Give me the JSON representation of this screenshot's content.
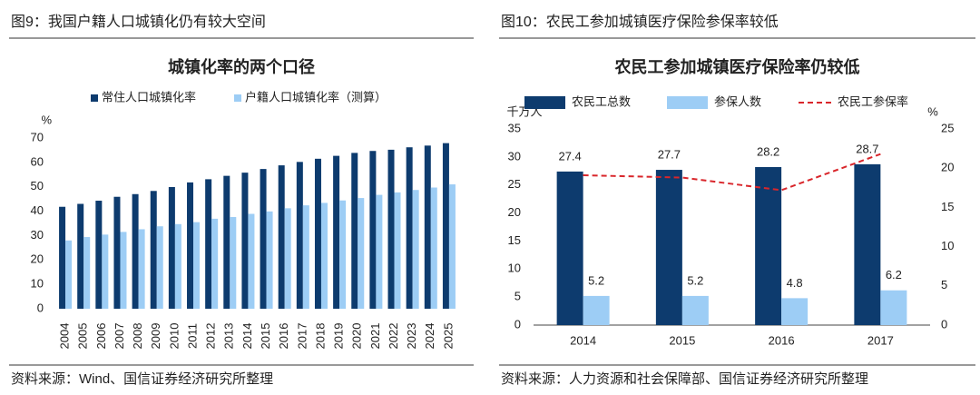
{
  "chart_data": [
    {
      "type": "bar",
      "caption": "图9：我国户籍人口城镇化仍有较大空间",
      "title": "城镇化率的两个口径",
      "source": "资料来源：Wind、国信证券经济研究所整理",
      "y_unit": "%",
      "categories": [
        "2004",
        "2005",
        "2006",
        "2007",
        "2008",
        "2009",
        "2010",
        "2011",
        "2012",
        "2013",
        "2014",
        "2015",
        "2016",
        "2017",
        "2018",
        "2019",
        "2020",
        "2021",
        "2022",
        "2023",
        "2024",
        "2025"
      ],
      "series": [
        {
          "name": "常住人口城镇化率",
          "color": "#0d3b6e",
          "values": [
            41.8,
            43.0,
            44.3,
            45.9,
            47.0,
            48.3,
            49.9,
            51.8,
            53.1,
            54.5,
            55.8,
            57.3,
            58.8,
            60.2,
            61.5,
            62.7,
            63.9,
            64.7,
            65.2,
            66.2,
            66.9,
            67.9
          ]
        },
        {
          "name": "户籍人口城镇化率（测算）",
          "color": "#9dcdf5",
          "values": [
            28.0,
            29.4,
            30.4,
            31.5,
            32.6,
            33.8,
            34.7,
            35.5,
            36.9,
            37.6,
            38.9,
            39.9,
            41.2,
            42.4,
            43.4,
            44.4,
            45.4,
            46.7,
            47.7,
            48.7,
            49.7,
            51.0
          ]
        }
      ],
      "ylim": [
        0,
        70
      ],
      "yticks": [
        0,
        10,
        20,
        30,
        40,
        50,
        60,
        70
      ]
    },
    {
      "type": "combo",
      "caption": "图10：农民工参加城镇医疗保险参保率较低",
      "title": "农民工参加城镇医疗保险率仍较低",
      "source": "资料来源：人力资源和社会保障部、国信证券经济研究所整理",
      "y_unit": "千万人",
      "y2_unit": "%",
      "categories": [
        "2014",
        "2015",
        "2016",
        "2017"
      ],
      "series": [
        {
          "name": "农民工总数",
          "color": "#0d3b6e",
          "values": [
            27.4,
            27.7,
            28.2,
            28.7
          ],
          "show_values": true
        },
        {
          "name": "参保人数",
          "color": "#9dcdf5",
          "values": [
            5.2,
            5.2,
            4.8,
            6.2
          ],
          "show_values": true
        },
        {
          "name": "农民工参保率",
          "color": "#d9262b",
          "type": "line",
          "dashed": true,
          "axis": "y2",
          "values": [
            19.1,
            18.8,
            17.2,
            21.8
          ]
        }
      ],
      "ylim": [
        0,
        35
      ],
      "yticks": [
        0,
        5,
        10,
        15,
        20,
        25,
        30,
        35
      ],
      "y2lim": [
        0,
        25
      ],
      "y2ticks": [
        0,
        5,
        10,
        15,
        20,
        25
      ]
    }
  ]
}
